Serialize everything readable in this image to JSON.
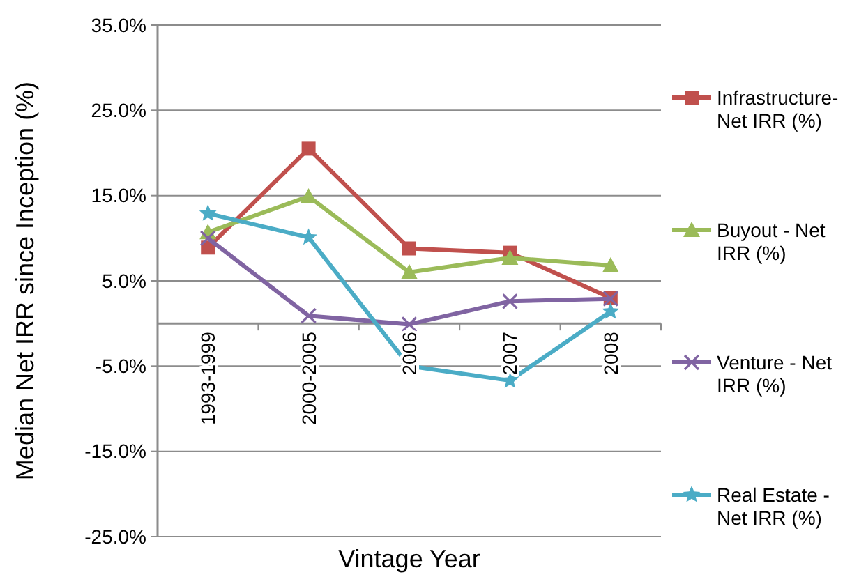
{
  "chart_data": {
    "type": "line",
    "xlabel": "Vintage Year",
    "ylabel": "Median Net IRR since Inception (%)",
    "categories": [
      "1993-1999",
      "2000-2005",
      "2006",
      "2007",
      "2008"
    ],
    "series": [
      {
        "name": "Infrastructure- Net IRR (%)",
        "color": "#c0504d",
        "marker": "square",
        "values": [
          8.9,
          20.5,
          8.8,
          8.3,
          3.0
        ]
      },
      {
        "name": "Buyout - Net IRR (%)",
        "color": "#9bbb59",
        "marker": "triangle",
        "values": [
          10.7,
          14.9,
          6.0,
          7.7,
          6.8
        ]
      },
      {
        "name": "Venture - Net IRR (%)",
        "color": "#8064a2",
        "marker": "cross",
        "values": [
          10.0,
          0.9,
          -0.1,
          2.6,
          2.9
        ]
      },
      {
        "name": "Real Estate - Net IRR (%)",
        "color": "#4bacc6",
        "marker": "star",
        "values": [
          12.9,
          10.1,
          -5.0,
          -6.7,
          1.4
        ]
      }
    ],
    "ylim": [
      -25,
      35
    ],
    "yticks": [
      {
        "value": -25,
        "label": "-25.0%"
      },
      {
        "value": -15,
        "label": "-15.0%"
      },
      {
        "value": -5,
        "label": "-5.0%"
      },
      {
        "value": 5,
        "label": "5.0%"
      },
      {
        "value": 15,
        "label": "15.0%"
      },
      {
        "value": 25,
        "label": "25.0%"
      },
      {
        "value": 35,
        "label": "35.0%"
      }
    ],
    "grid": "y",
    "legend": "right"
  }
}
